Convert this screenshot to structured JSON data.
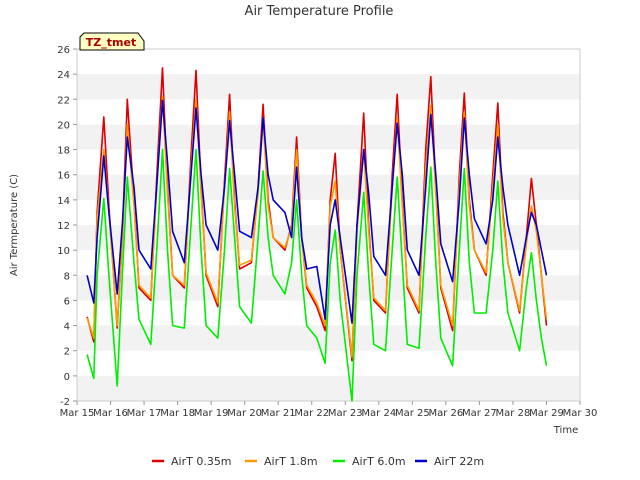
{
  "chart_data": {
    "type": "line",
    "title": "Air Temperature Profile",
    "xlabel": "Time",
    "ylabel": "Air Termperature (C)",
    "badge": "TZ_tmet",
    "x_ticks": [
      "Mar 15",
      "Mar 16",
      "Mar 17",
      "Mar 18",
      "Mar 19",
      "Mar 20",
      "Mar 21",
      "Mar 22",
      "Mar 23",
      "Mar 24",
      "Mar 25",
      "Mar 26",
      "Mar 27",
      "Mar 28",
      "Mar 29",
      "Mar 30"
    ],
    "xlim": [
      15,
      30
    ],
    "ylim": [
      -2,
      26
    ],
    "y_ticks": [
      -2,
      0,
      2,
      4,
      6,
      8,
      10,
      12,
      14,
      16,
      18,
      20,
      22,
      24,
      26
    ],
    "grid": "horizontal bands",
    "legend": "bottom",
    "x_unit": "day of March",
    "series": [
      {
        "name": "AirT 0.35m",
        "color": "#dd0000",
        "x": [
          15.3,
          15.5,
          15.6,
          15.8,
          15.95,
          16.2,
          16.35,
          16.5,
          16.7,
          16.85,
          17.2,
          17.4,
          17.55,
          17.7,
          17.85,
          18.2,
          18.4,
          18.55,
          18.7,
          18.85,
          19.2,
          19.4,
          19.55,
          19.7,
          19.85,
          20.2,
          20.4,
          20.55,
          20.7,
          20.85,
          21.2,
          21.4,
          21.55,
          21.7,
          21.85,
          22.15,
          22.4,
          22.55,
          22.7,
          22.85,
          23.2,
          23.35,
          23.55,
          23.7,
          23.85,
          24.2,
          24.4,
          24.55,
          24.7,
          24.85,
          25.2,
          25.4,
          25.55,
          25.7,
          25.85,
          26.2,
          26.4,
          26.55,
          26.7,
          26.85,
          27.2,
          27.4,
          27.55,
          27.7,
          27.85,
          28.2,
          28.4,
          28.55,
          28.7,
          28.85,
          29.0
        ],
        "values": [
          4.7,
          2.7,
          13.0,
          20.6,
          13.5,
          3.8,
          11.0,
          22.0,
          14.0,
          7.0,
          6.0,
          17.0,
          24.5,
          15.0,
          8.0,
          7.0,
          17.5,
          24.3,
          15.0,
          8.0,
          5.5,
          15.5,
          22.4,
          14.0,
          8.5,
          9.0,
          15.0,
          21.6,
          14.0,
          11.0,
          10.0,
          12.0,
          19.0,
          11.0,
          7.0,
          5.5,
          3.6,
          14.0,
          17.7,
          10.0,
          1.2,
          12.0,
          20.9,
          12.0,
          6.0,
          5.0,
          16.0,
          22.4,
          14.0,
          7.0,
          5.0,
          18.0,
          23.8,
          15.0,
          7.0,
          3.6,
          16.0,
          22.5,
          14.0,
          10.0,
          8.0,
          16.0,
          21.7,
          13.0,
          9.0,
          5.0,
          11.0,
          15.7,
          12.0,
          8.0,
          4.0
        ]
      },
      {
        "name": "AirT 1.8m",
        "color": "#ff9900",
        "x": [
          15.3,
          15.5,
          15.6,
          15.8,
          15.95,
          16.2,
          16.35,
          16.5,
          16.7,
          16.85,
          17.2,
          17.4,
          17.55,
          17.7,
          17.85,
          18.2,
          18.4,
          18.55,
          18.7,
          18.85,
          19.2,
          19.4,
          19.55,
          19.7,
          19.85,
          20.2,
          20.4,
          20.55,
          20.7,
          20.85,
          21.2,
          21.4,
          21.55,
          21.7,
          21.85,
          22.15,
          22.4,
          22.55,
          22.7,
          22.85,
          23.2,
          23.35,
          23.55,
          23.7,
          23.85,
          24.2,
          24.4,
          24.55,
          24.7,
          24.85,
          25.2,
          25.4,
          25.55,
          25.7,
          25.85,
          26.2,
          26.4,
          26.55,
          26.7,
          26.85,
          27.2,
          27.4,
          27.55,
          27.7,
          27.85,
          28.2,
          28.4,
          28.55,
          28.7,
          28.85,
          29.0
        ],
        "values": [
          4.6,
          3.0,
          12.5,
          18.0,
          13.0,
          4.0,
          10.5,
          20.0,
          13.5,
          7.2,
          6.2,
          16.0,
          22.2,
          14.5,
          8.0,
          7.2,
          16.5,
          22.0,
          14.5,
          8.2,
          5.8,
          15.0,
          21.0,
          13.5,
          8.8,
          9.2,
          14.5,
          20.5,
          13.5,
          11.0,
          10.2,
          11.8,
          18.0,
          11.0,
          7.2,
          5.8,
          4.0,
          13.5,
          15.5,
          10.0,
          1.5,
          11.5,
          18.0,
          11.5,
          6.2,
          5.2,
          15.0,
          20.5,
          13.5,
          7.2,
          5.2,
          16.5,
          21.5,
          14.5,
          7.2,
          4.0,
          15.0,
          21.0,
          13.5,
          10.0,
          8.2,
          15.0,
          20.0,
          12.5,
          9.0,
          5.2,
          10.5,
          13.5,
          11.5,
          8.0,
          4.5
        ]
      },
      {
        "name": "AirT 6.0m",
        "color": "#00ee00",
        "x": [
          15.3,
          15.5,
          15.6,
          15.8,
          15.95,
          16.2,
          16.35,
          16.5,
          16.7,
          16.85,
          17.2,
          17.4,
          17.55,
          17.7,
          17.85,
          18.2,
          18.4,
          18.55,
          18.7,
          18.85,
          19.2,
          19.4,
          19.55,
          19.7,
          19.85,
          20.2,
          20.4,
          20.55,
          20.7,
          20.85,
          21.2,
          21.4,
          21.55,
          21.7,
          21.85,
          22.15,
          22.4,
          22.55,
          22.7,
          22.85,
          23.2,
          23.35,
          23.55,
          23.7,
          23.85,
          24.2,
          24.4,
          24.55,
          24.7,
          24.85,
          25.2,
          25.4,
          25.55,
          25.7,
          25.85,
          26.2,
          26.4,
          26.55,
          26.7,
          26.85,
          27.2,
          27.4,
          27.55,
          27.7,
          27.85,
          28.2,
          28.4,
          28.55,
          28.7,
          28.85,
          29.0
        ],
        "values": [
          1.7,
          -0.2,
          8.0,
          14.1,
          8.0,
          -0.8,
          8.0,
          15.8,
          9.0,
          4.5,
          2.5,
          11.0,
          18.0,
          10.0,
          4.0,
          3.8,
          12.0,
          18.0,
          10.0,
          4.0,
          3.0,
          10.0,
          16.5,
          11.0,
          5.5,
          4.2,
          11.0,
          16.3,
          11.0,
          8.0,
          6.5,
          9.0,
          14.0,
          8.0,
          4.0,
          3.0,
          1.0,
          9.0,
          11.6,
          6.0,
          -2.0,
          8.0,
          14.6,
          8.0,
          2.5,
          2.0,
          10.0,
          15.8,
          9.0,
          2.5,
          2.2,
          11.0,
          16.6,
          9.0,
          3.0,
          0.8,
          10.0,
          16.5,
          9.0,
          5.0,
          5.0,
          10.0,
          15.5,
          9.0,
          5.0,
          2.0,
          7.0,
          9.8,
          6.0,
          3.0,
          0.8
        ]
      },
      {
        "name": "AirT 22m",
        "color": "#0000cc",
        "x": [
          15.3,
          15.5,
          15.6,
          15.8,
          15.95,
          16.2,
          16.35,
          16.5,
          16.7,
          16.85,
          17.2,
          17.4,
          17.55,
          17.7,
          17.85,
          18.2,
          18.4,
          18.55,
          18.7,
          18.85,
          19.2,
          19.4,
          19.55,
          19.7,
          19.85,
          20.2,
          20.4,
          20.55,
          20.7,
          20.85,
          21.2,
          21.4,
          21.55,
          21.7,
          21.85,
          22.15,
          22.4,
          22.55,
          22.7,
          22.85,
          23.2,
          23.35,
          23.55,
          23.7,
          23.85,
          24.2,
          24.4,
          24.55,
          24.7,
          24.85,
          25.2,
          25.4,
          25.55,
          25.7,
          25.85,
          26.2,
          26.4,
          26.55,
          26.7,
          26.85,
          27.2,
          27.4,
          27.55,
          27.7,
          27.85,
          28.2,
          28.4,
          28.55,
          28.7,
          28.85,
          29.0
        ],
        "values": [
          8.0,
          5.8,
          11.0,
          17.5,
          13.0,
          6.5,
          12.0,
          19.0,
          15.0,
          10.0,
          8.5,
          16.0,
          21.9,
          17.0,
          11.5,
          9.0,
          16.0,
          21.3,
          16.0,
          12.0,
          10.0,
          15.0,
          20.3,
          16.0,
          11.5,
          11.0,
          15.0,
          20.5,
          16.0,
          14.0,
          13.0,
          11.0,
          16.6,
          11.0,
          8.5,
          8.7,
          4.5,
          12.0,
          14.0,
          11.0,
          4.2,
          12.0,
          18.0,
          14.5,
          9.5,
          8.0,
          15.0,
          20.1,
          16.0,
          10.0,
          8.0,
          15.0,
          20.8,
          16.0,
          10.5,
          7.5,
          14.0,
          20.5,
          16.0,
          12.5,
          10.5,
          14.0,
          19.0,
          15.0,
          12.0,
          8.0,
          11.0,
          13.0,
          12.0,
          10.0,
          8.0
        ]
      }
    ]
  }
}
